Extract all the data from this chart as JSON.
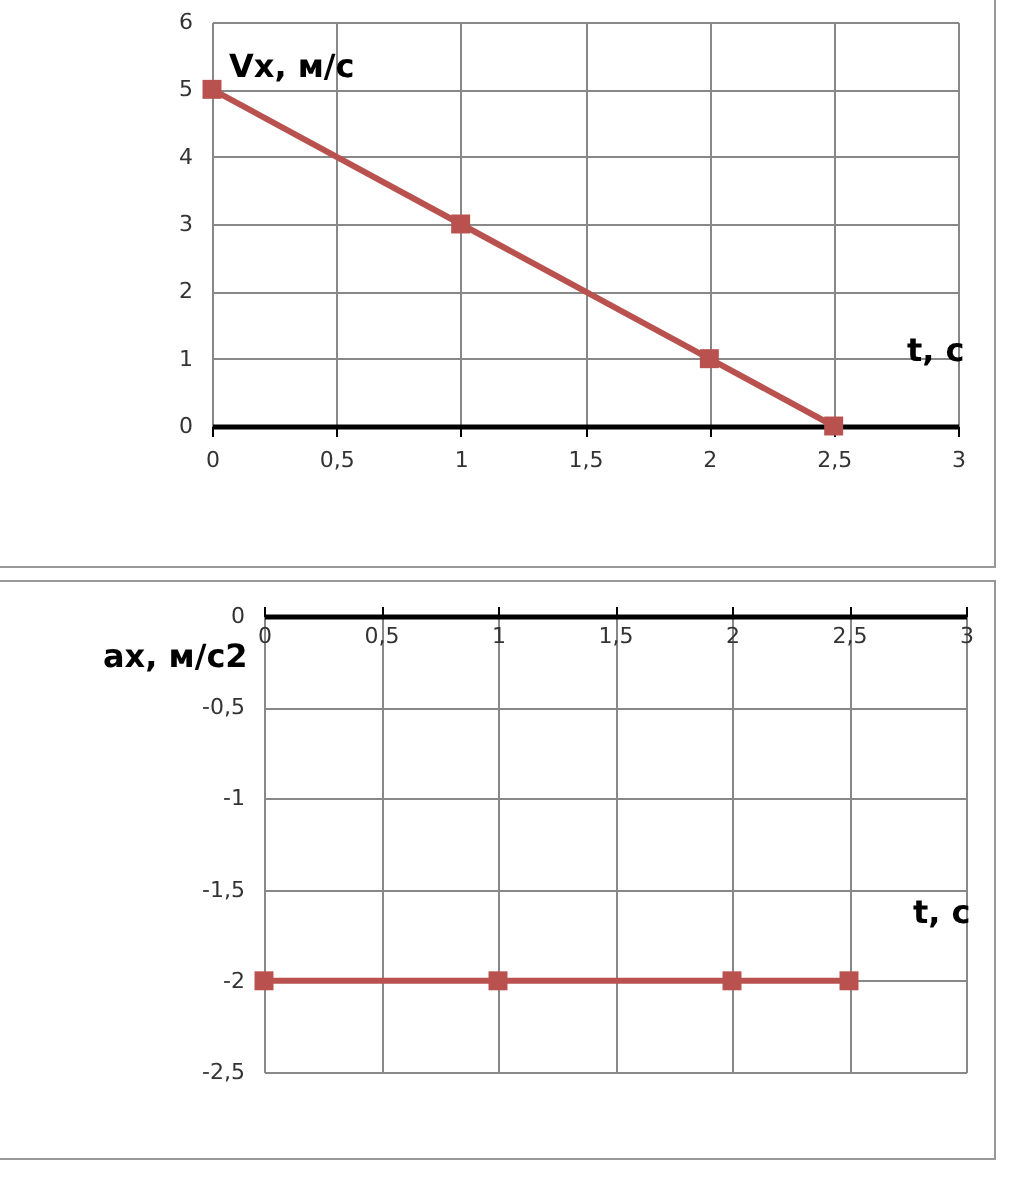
{
  "chart_data": [
    {
      "type": "line",
      "xlabel": "t,  c",
      "ylabel": "Vx, м/с",
      "marker": "square",
      "grid": true,
      "xlim": [
        0,
        3
      ],
      "xticks": [
        0,
        {
          "value": 0.5,
          "label": "0,5"
        },
        1,
        {
          "value": 1.5,
          "label": "1,5"
        },
        2,
        {
          "value": 2.5,
          "label": "2,5"
        },
        3
      ],
      "ylim": [
        0,
        6
      ],
      "yticks": [
        0,
        1,
        2,
        3,
        4,
        5,
        6
      ],
      "series": [
        {
          "color": "#b9524f",
          "x": [
            0,
            1,
            2,
            2.5
          ],
          "values": [
            5,
            3,
            1,
            0
          ]
        }
      ]
    },
    {
      "type": "line",
      "xlabel": "t,  c",
      "ylabel": "ax, м/с2",
      "marker": "square",
      "grid": true,
      "xlim": [
        0,
        3
      ],
      "xticks": [
        0,
        {
          "value": 0.5,
          "label": "0,5"
        },
        1,
        {
          "value": 1.5,
          "label": "1,5"
        },
        2,
        {
          "value": 2.5,
          "label": "2,5"
        },
        3
      ],
      "ylim": [
        -2.5,
        0
      ],
      "yticks": [
        0,
        {
          "value": -0.5,
          "label": "-0,5"
        },
        -1,
        {
          "value": -1.5,
          "label": "-1,5"
        },
        -2,
        {
          "value": -2.5,
          "label": "-2,5"
        }
      ],
      "series": [
        {
          "color": "#b9524f",
          "x": [
            0,
            1,
            2,
            2.5
          ],
          "values": [
            -2,
            -2,
            -2,
            -2
          ]
        }
      ]
    }
  ]
}
